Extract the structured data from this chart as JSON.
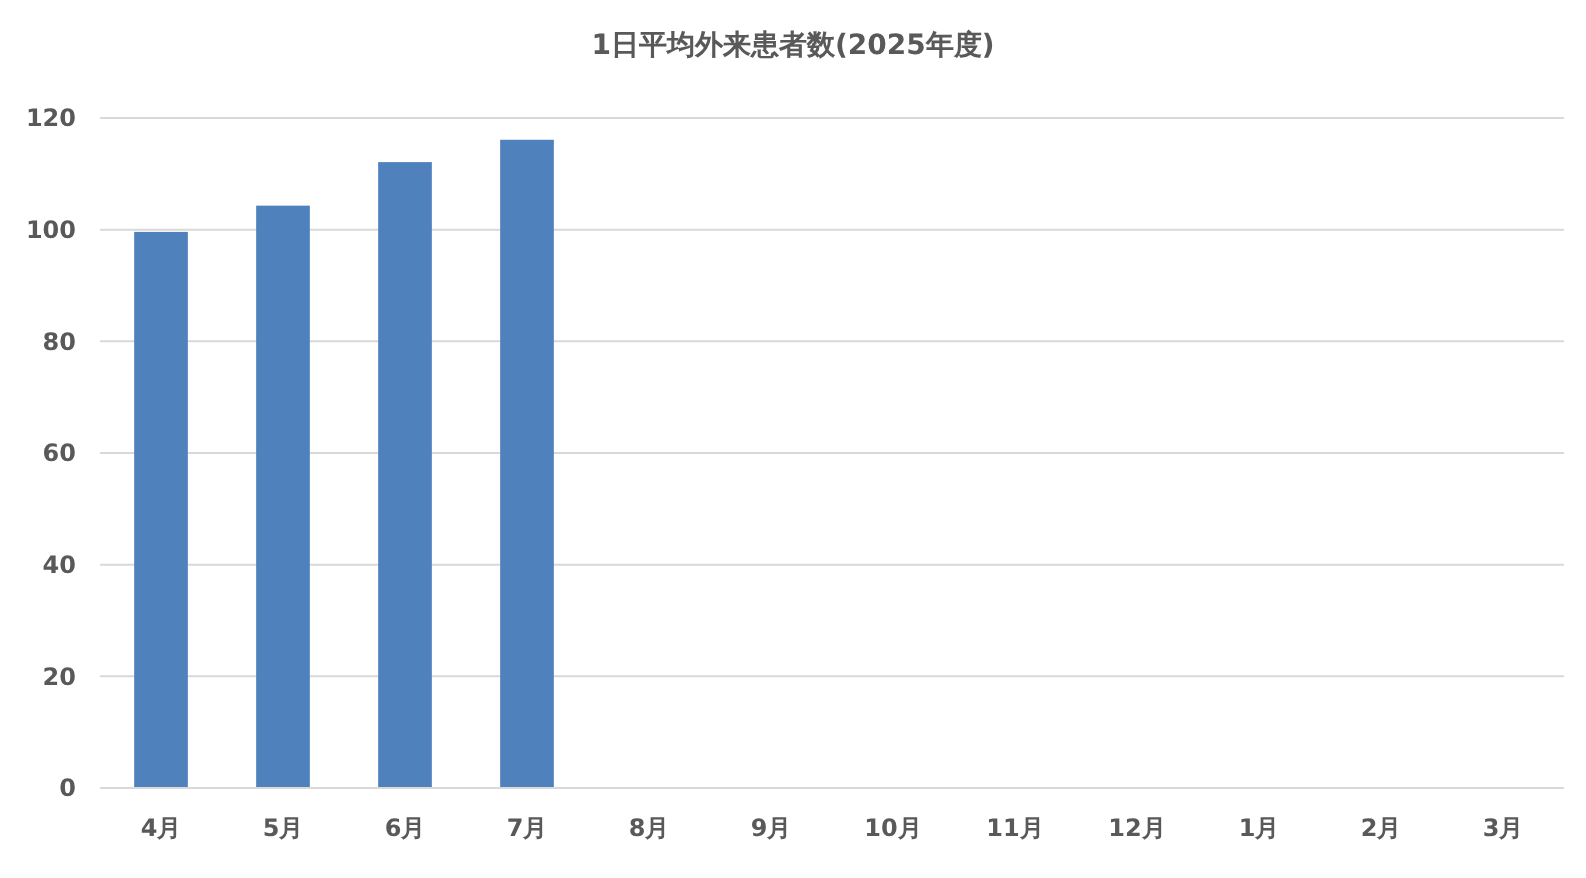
{
  "chart_data": {
    "type": "bar",
    "title": "1日平均外来患者数(2025年度)",
    "categories": [
      "4月",
      "5月",
      "6月",
      "7月",
      "8月",
      "9月",
      "10月",
      "11月",
      "12月",
      "1月",
      "2月",
      "3月"
    ],
    "values": [
      99.6,
      104.3,
      112.1,
      116.1,
      null,
      null,
      null,
      null,
      null,
      null,
      null,
      null
    ],
    "color": "#4f81bd",
    "ylim": [
      0,
      120
    ],
    "yticks": [
      0,
      20,
      40,
      60,
      80,
      100,
      120
    ],
    "grid": "y"
  }
}
